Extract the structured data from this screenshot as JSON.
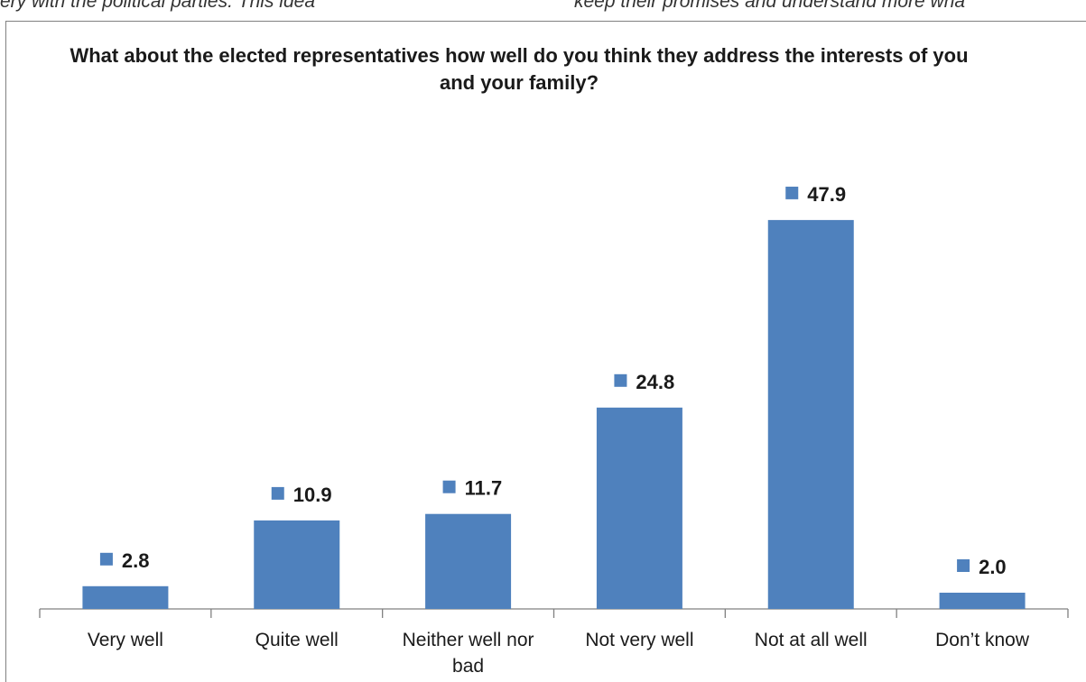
{
  "page": {
    "top_left_text": "ery with the political parties. This idea",
    "top_right_text": "keep their promises and understand more wha"
  },
  "chart_data": {
    "type": "bar",
    "title": "What about the elected representatives how well do you think they address the interests of you and your family?",
    "categories": [
      "Very well",
      "Quite well",
      "Neither well nor bad",
      "Not very well",
      "Not at all well",
      "Don’t know"
    ],
    "category_lines": [
      [
        "Very well"
      ],
      [
        "Quite well"
      ],
      [
        "Neither well nor",
        "bad"
      ],
      [
        "Not very well"
      ],
      [
        "Not at all well"
      ],
      [
        "Don’t know"
      ]
    ],
    "series": [
      {
        "values": [
          2.8,
          10.9,
          11.7,
          24.8,
          47.9,
          2.0
        ],
        "labels": [
          "2.8",
          "10.9",
          "11.7",
          "24.8",
          "47.9",
          "2.0"
        ]
      }
    ],
    "xlabel": "",
    "ylabel": "",
    "ylim": [
      0,
      50
    ],
    "grid": false,
    "legend": "none",
    "colors": {
      "bar": "#4f81bd",
      "axis": "#808080",
      "text": "#1a1a1a"
    }
  }
}
